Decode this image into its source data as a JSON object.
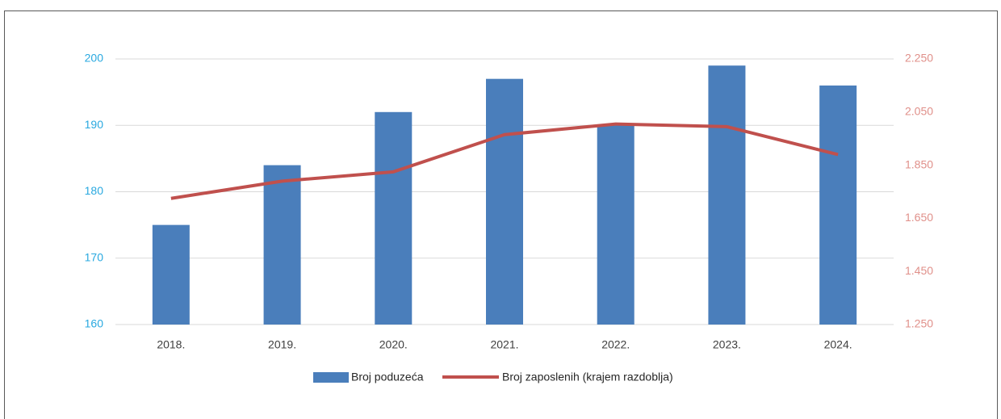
{
  "chart_data": {
    "type": "bar",
    "categories": [
      "2018.",
      "2019.",
      "2020.",
      "2021.",
      "2022.",
      "2023.",
      "2024."
    ],
    "series": [
      {
        "name": "Broj poduzeća",
        "type": "bar",
        "color": "#4a7ebb",
        "axis": "y",
        "values": [
          175,
          184,
          192,
          197,
          190,
          199,
          196
        ]
      },
      {
        "name": "Broj zaposlenih (krajem razdoblja)",
        "type": "line",
        "color": "#c0504d",
        "axis": "y2",
        "values": [
          1725,
          1790,
          1825,
          1965,
          2005,
          1995,
          1890
        ]
      }
    ],
    "ylim": [
      160,
      200
    ],
    "yticks": [
      160,
      170,
      180,
      190,
      200
    ],
    "y2lim": [
      1250,
      2250
    ],
    "y2ticks": [
      {
        "value": 1250,
        "label": "1.250"
      },
      {
        "value": 1450,
        "label": "1.450"
      },
      {
        "value": 1650,
        "label": "1.650"
      },
      {
        "value": 1850,
        "label": "1.850"
      },
      {
        "value": 2050,
        "label": "2.050"
      },
      {
        "value": 2250,
        "label": "2.250"
      }
    ],
    "ytick_color": "#2aa9e0",
    "y2tick_color": "#e0908a",
    "grid": true,
    "legend": "bottom"
  }
}
